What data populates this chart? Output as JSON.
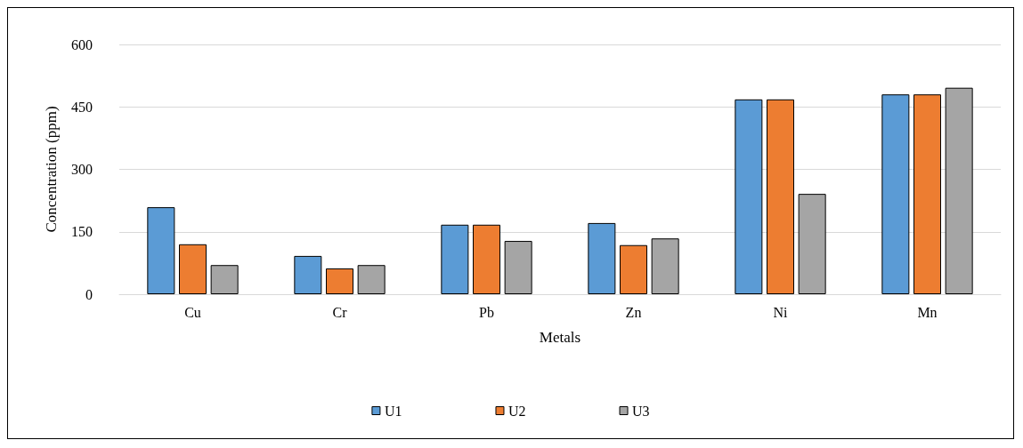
{
  "chart_data": {
    "type": "bar",
    "xlabel": "Metals",
    "ylabel": "Concentration (ppm)",
    "categories": [
      "Cu",
      "Cr",
      "Pb",
      "Zn",
      "Ni",
      "Mn"
    ],
    "series": [
      {
        "name": "U1",
        "color": "#5b9bd5",
        "values": [
          209,
          92,
          167,
          171,
          468,
          480
        ]
      },
      {
        "name": "U2",
        "color": "#ed7d31",
        "values": [
          120,
          62,
          167,
          118,
          468,
          480
        ]
      },
      {
        "name": "U3",
        "color": "#a5a5a5",
        "values": [
          70,
          70,
          128,
          134,
          241,
          496
        ]
      }
    ],
    "ylim": [
      0,
      600
    ],
    "yticks": [
      0,
      150,
      300,
      450,
      600
    ],
    "grid": "y",
    "legend": "bottom"
  }
}
